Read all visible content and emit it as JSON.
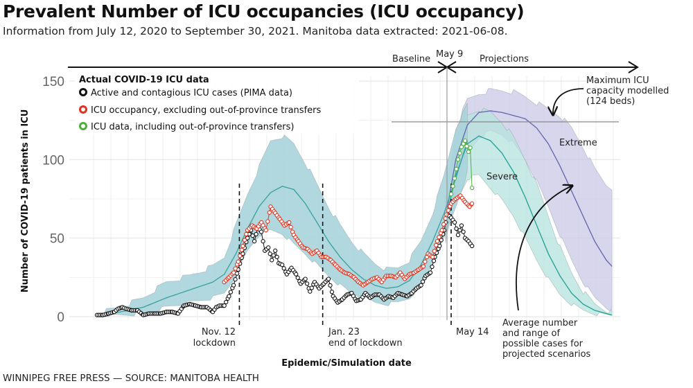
{
  "header": {
    "title": "Prevalent Number of ICU occupancies (ICU occupancy)",
    "subtitle": "Information from July 12, 2020 to September 30, 2021. Manitoba data extracted: 2021-06-08."
  },
  "footer": "WINNIPEG FREE PRESS — SOURCE: MANITOBA HEALTH",
  "colors": {
    "baseline_band": "#a9d4dc",
    "baseline_line": "#3fa3a3",
    "severe_band": "#b5e3dd",
    "severe_line": "#2aa39a",
    "extreme_band": "#c9c8e6",
    "extreme_line": "#6a6bb0",
    "active": "#111111",
    "occupancy": "#e0331f",
    "incl_transfers": "#4caf3a"
  },
  "chart_data": {
    "type": "line",
    "title": "Prevalent Number of ICU occupancies (ICU occupancy)",
    "xlabel": "Epidemic/Simulation date",
    "ylabel": "Number of COVID-19 patients in ICU",
    "x_unit": "days since July 12, 2020",
    "xlim": [
      0,
      445
    ],
    "ylim": [
      0,
      150
    ],
    "yticks": [
      "0",
      "50",
      "100",
      "150"
    ],
    "grid": true,
    "legend": {
      "title": "Actual COVID-19 ICU data",
      "position": "top-left",
      "entries": [
        "Active and contagious ICU cases (PIMA data)",
        "ICU occupancy, excluding out-of-province transfers",
        "ICU data, including out-of-province transfers)"
      ]
    },
    "phases": {
      "baseline_label": "Baseline",
      "split_label": "May 9",
      "projections_label": "Projections",
      "split_day": 301
    },
    "events": [
      {
        "day": 123,
        "label_line1": "Nov. 12",
        "label_line2": "lockdown"
      },
      {
        "day": 195,
        "label_line1": "Jan. 23",
        "label_line2": "end of lockdown"
      },
      {
        "day": 306,
        "label_line1": "May 14",
        "label_line2": ""
      }
    ],
    "capacity": {
      "value": 124,
      "label_lines": [
        "Maximum ICU",
        "capacity modelled",
        "(124 beds)"
      ]
    },
    "scenario_labels": {
      "severe": "Severe",
      "extreme": "Extreme"
    },
    "projection_note_lines": [
      "Average  number",
      "and range of",
      "possible cases for",
      "projected scenarios"
    ],
    "series": [
      {
        "name": "Baseline model",
        "x": [
          0,
          20,
          40,
          60,
          80,
          100,
          110,
          120,
          130,
          140,
          150,
          160,
          170,
          180,
          190,
          200,
          210,
          220,
          230,
          240,
          250,
          260,
          270,
          280,
          290,
          300,
          310,
          320
        ],
        "mean": [
          1,
          3,
          6,
          12,
          17,
          22,
          27,
          40,
          56,
          70,
          79,
          83,
          81,
          72,
          60,
          48,
          38,
          30,
          24,
          20,
          18,
          19,
          23,
          33,
          48,
          66,
          88,
          112
        ],
        "low": [
          0,
          1,
          2,
          6,
          9,
          12,
          15,
          26,
          42,
          52,
          55,
          53,
          46,
          40,
          33,
          26,
          20,
          15,
          12,
          9,
          8,
          9,
          12,
          20,
          34,
          50,
          70,
          92
        ],
        "high": [
          2,
          6,
          12,
          22,
          26,
          32,
          38,
          58,
          78,
          95,
          112,
          115,
          110,
          98,
          84,
          70,
          58,
          48,
          40,
          34,
          30,
          31,
          36,
          48,
          66,
          90,
          120,
          135
        ]
      },
      {
        "name": "Severe",
        "x": [
          301,
          310,
          320,
          330,
          340,
          350,
          360,
          370,
          380,
          390,
          400,
          410,
          420,
          430,
          440,
          445
        ],
        "mean": [
          60,
          90,
          110,
          115,
          112,
          104,
          92,
          76,
          58,
          40,
          26,
          15,
          8,
          4,
          2,
          1
        ],
        "low": [
          48,
          72,
          88,
          90,
          82,
          74,
          64,
          50,
          36,
          24,
          14,
          8,
          4,
          2,
          1,
          1
        ],
        "high": [
          72,
          110,
          128,
          132,
          130,
          124,
          114,
          100,
          84,
          64,
          44,
          28,
          16,
          8,
          4,
          3
        ]
      },
      {
        "name": "Extreme",
        "x": [
          301,
          310,
          320,
          330,
          340,
          350,
          360,
          370,
          380,
          390,
          400,
          410,
          420,
          430,
          440,
          445
        ],
        "mean": [
          62,
          100,
          122,
          130,
          131,
          130,
          128,
          126,
          120,
          110,
          96,
          80,
          64,
          48,
          36,
          32
        ],
        "low": [
          50,
          80,
          104,
          114,
          118,
          116,
          110,
          100,
          86,
          70,
          52,
          36,
          22,
          12,
          6,
          4
        ],
        "high": [
          74,
          120,
          138,
          142,
          144,
          144,
          143,
          140,
          136,
          132,
          128,
          120,
          108,
          94,
          84,
          82
        ]
      },
      {
        "name": "Active and contagious ICU cases (PIMA data)",
        "x": [
          0,
          5,
          10,
          15,
          18,
          22,
          25,
          30,
          35,
          40,
          45,
          50,
          55,
          60,
          65,
          70,
          75,
          80,
          85,
          90,
          95,
          100,
          103,
          106,
          110,
          114,
          118,
          122,
          126,
          130,
          133,
          136,
          139,
          142,
          145,
          148,
          151,
          154,
          157,
          160,
          164,
          168,
          172,
          176,
          180,
          184,
          188,
          192,
          196,
          200,
          204,
          208,
          212,
          216,
          220,
          224,
          228,
          232,
          236,
          240,
          244,
          248,
          252,
          256,
          260,
          264,
          268,
          272,
          276,
          280,
          284,
          288,
          292,
          296,
          300,
          303,
          306,
          309,
          312,
          315,
          318,
          321,
          324
        ],
        "y": [
          1,
          1,
          2,
          3,
          5,
          6,
          5,
          4,
          4,
          1,
          2,
          2,
          2,
          3,
          3,
          2,
          7,
          8,
          7,
          6,
          6,
          3,
          6,
          7,
          7,
          13,
          20,
          30,
          40,
          50,
          55,
          48,
          57,
          54,
          42,
          44,
          36,
          42,
          34,
          33,
          27,
          31,
          27,
          21,
          24,
          16,
          22,
          18,
          21,
          24,
          13,
          9,
          11,
          14,
          15,
          10,
          11,
          15,
          12,
          14,
          14,
          11,
          13,
          12,
          15,
          14,
          13,
          15,
          18,
          20,
          26,
          28,
          38,
          45,
          55,
          65,
          63,
          60,
          52,
          58,
          50,
          48,
          45
        ]
      },
      {
        "name": "ICU occupancy, excluding out-of-province transfers",
        "x": [
          110,
          114,
          118,
          122,
          126,
          130,
          134,
          138,
          142,
          146,
          150,
          154,
          158,
          162,
          166,
          170,
          174,
          178,
          182,
          186,
          190,
          194,
          198,
          202,
          206,
          210,
          214,
          218,
          222,
          226,
          230,
          234,
          238,
          242,
          246,
          250,
          254,
          258,
          262,
          266,
          270,
          274,
          278,
          282,
          286,
          290,
          294,
          298,
          302,
          306,
          310,
          314,
          318,
          322,
          324
        ],
        "y": [
          22,
          25,
          28,
          35,
          45,
          55,
          58,
          56,
          60,
          55,
          70,
          66,
          62,
          58,
          60,
          52,
          48,
          44,
          43,
          40,
          42,
          38,
          38,
          36,
          33,
          30,
          28,
          27,
          25,
          22,
          20,
          22,
          24,
          25,
          22,
          26,
          26,
          25,
          28,
          24,
          27,
          28,
          30,
          32,
          40,
          38,
          48,
          55,
          65,
          72,
          75,
          77,
          73,
          70,
          72
        ]
      },
      {
        "name": "ICU data, including out-of-province transfers)",
        "x": [
          306,
          309,
          312,
          315,
          318,
          321,
          324,
          324
        ],
        "y": [
          78,
          88,
          100,
          108,
          112,
          105,
          110,
          82
        ]
      }
    ]
  }
}
